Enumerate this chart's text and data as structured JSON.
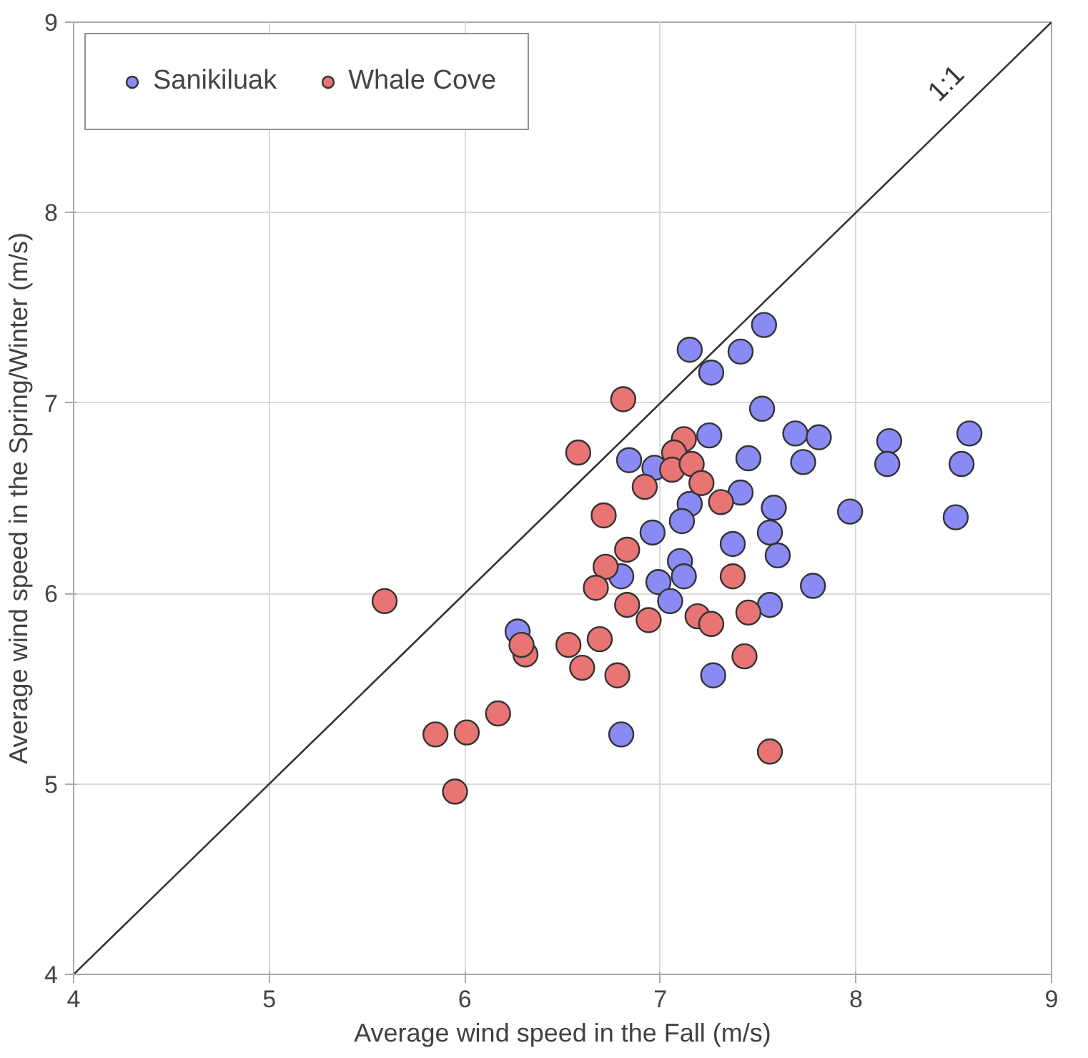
{
  "chart_data": {
    "type": "scatter",
    "xlabel": "Average wind speed in the Fall (m/s)",
    "ylabel": "Average wind speed in the Spring/Winter (m/s)",
    "xlim": [
      4,
      9
    ],
    "ylim": [
      4,
      9
    ],
    "xticks": [
      4,
      5,
      6,
      7,
      8,
      9
    ],
    "yticks": [
      4,
      5,
      6,
      7,
      8,
      9
    ],
    "grid": true,
    "legend": "top left",
    "marker": "circle",
    "series": [
      {
        "name": "Sanikiluak",
        "color": "#8a8af5",
        "x": [
          7.15,
          7.41,
          7.53,
          7.26,
          7.52,
          7.25,
          7.69,
          7.81,
          7.73,
          8.17,
          8.16,
          8.58,
          8.54,
          6.84,
          6.97,
          7.45,
          7.41,
          7.15,
          7.11,
          7.58,
          7.56,
          7.6,
          7.97,
          8.51,
          6.96,
          7.37,
          7.1,
          7.12,
          6.8,
          6.99,
          7.05,
          7.56,
          7.78,
          7.27,
          6.27,
          6.8
        ],
        "values": [
          7.28,
          7.27,
          7.41,
          7.16,
          6.97,
          6.83,
          6.84,
          6.82,
          6.69,
          6.8,
          6.68,
          6.84,
          6.68,
          6.7,
          6.66,
          6.71,
          6.53,
          6.47,
          6.38,
          6.45,
          6.32,
          6.2,
          6.43,
          6.4,
          6.32,
          6.26,
          6.17,
          6.09,
          6.09,
          6.06,
          5.96,
          5.94,
          6.04,
          5.57,
          5.8,
          5.26
        ]
      },
      {
        "name": "Whale Cove",
        "color": "#e87474",
        "x": [
          6.81,
          6.58,
          7.12,
          7.07,
          7.06,
          7.16,
          6.92,
          7.21,
          7.31,
          6.71,
          6.83,
          6.72,
          6.67,
          6.83,
          6.94,
          7.37,
          7.45,
          7.19,
          7.26,
          6.53,
          6.69,
          6.6,
          6.78,
          7.43,
          5.59,
          6.31,
          6.29,
          6.17,
          5.85,
          6.01,
          5.95,
          7.56
        ],
        "values": [
          7.02,
          6.74,
          6.81,
          6.74,
          6.65,
          6.68,
          6.56,
          6.58,
          6.48,
          6.41,
          6.23,
          6.14,
          6.03,
          5.94,
          5.86,
          6.09,
          5.9,
          5.88,
          5.84,
          5.73,
          5.76,
          5.61,
          5.57,
          5.67,
          5.96,
          5.68,
          5.73,
          5.37,
          5.26,
          5.27,
          4.96,
          5.17
        ]
      },
      {
        "name": "1:1",
        "type": "line",
        "marker": "none",
        "color": "#333333",
        "x": [
          4,
          9
        ],
        "values": [
          4,
          9
        ]
      }
    ]
  }
}
